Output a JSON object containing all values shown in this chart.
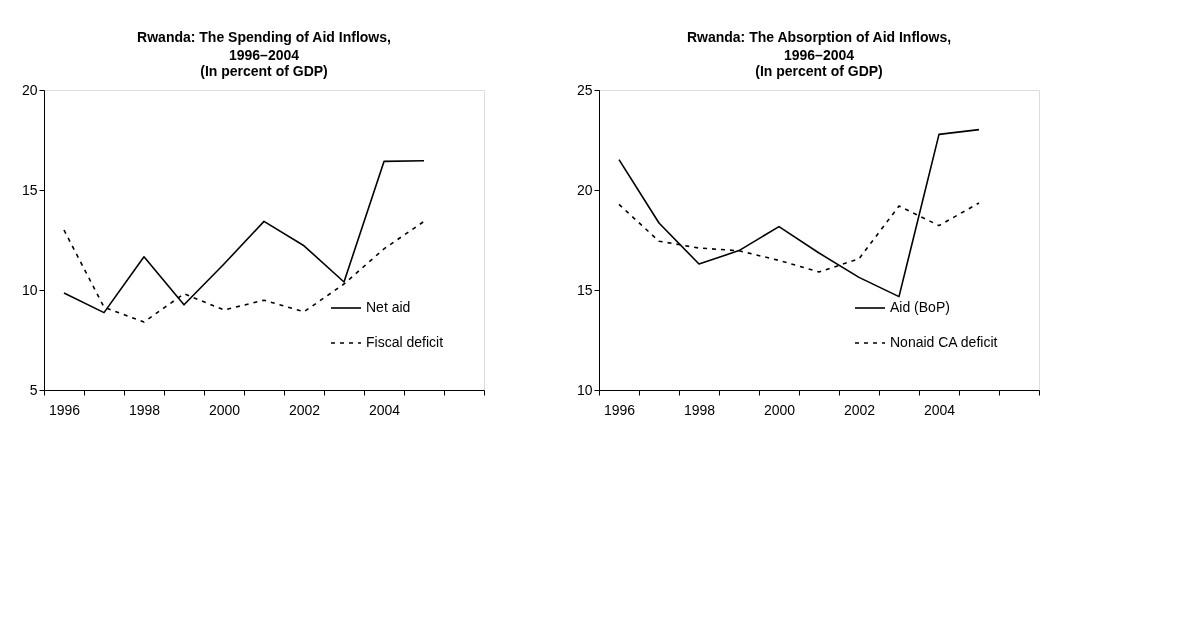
{
  "chart_data": [
    {
      "type": "line",
      "title": "Rwanda: The Spending of Aid Inflows, 1996–2004",
      "subtitle": "(In percent of GDP)",
      "categories": [
        "1996",
        null,
        "1998",
        null,
        "2000",
        null,
        "2002",
        null,
        "2004",
        null,
        null
      ],
      "ylim": [
        5,
        20
      ],
      "yticks": [
        5,
        10,
        15,
        20
      ],
      "grid": false,
      "legend": "bottom right",
      "series": [
        {
          "name": "Net aid",
          "color": "#000000",
          "line_style": "solid",
          "values": [
            9.85,
            8.87,
            11.66,
            9.26,
            11.3,
            13.43,
            12.21,
            10.4,
            16.43,
            16.46,
            null
          ]
        },
        {
          "name": "Fiscal deficit",
          "color": "#000000",
          "line_style": "dotted",
          "values": [
            13.0,
            9.14,
            8.4,
            9.81,
            9.0,
            9.49,
            8.91,
            10.3,
            12.06,
            13.43,
            null
          ]
        }
      ]
    },
    {
      "type": "line",
      "title": "Rwanda: The Absorption of Aid Inflows, 1996–2004",
      "subtitle": "(In percent of GDP)",
      "categories": [
        "1996",
        null,
        "1998",
        null,
        "2000",
        null,
        "2002",
        null,
        "2004",
        null,
        null
      ],
      "ylim": [
        10,
        25
      ],
      "yticks": [
        10,
        15,
        20,
        25
      ],
      "grid": false,
      "legend": "bottom right",
      "series": [
        {
          "name": "Aid (BoP)",
          "color": "#000000",
          "line_style": "solid",
          "values": [
            21.52,
            18.35,
            16.3,
            16.97,
            18.17,
            16.85,
            15.63,
            14.67,
            22.78,
            23.02,
            null
          ]
        },
        {
          "name": "Nonaid CA deficit",
          "color": "#000000",
          "line_style": "dotted",
          "values": [
            19.28,
            17.44,
            17.1,
            16.96,
            16.48,
            15.9,
            16.56,
            19.2,
            18.22,
            19.35,
            null
          ]
        }
      ]
    }
  ]
}
